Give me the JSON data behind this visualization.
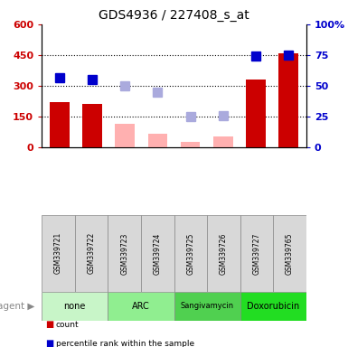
{
  "title": "GDS4936 / 227408_s_at",
  "samples": [
    "GSM339721",
    "GSM339722",
    "GSM339723",
    "GSM339724",
    "GSM339725",
    "GSM339726",
    "GSM339727",
    "GSM339765"
  ],
  "groups": [
    {
      "label": "none",
      "color": "#c8f5c8",
      "samples": [
        0,
        1
      ]
    },
    {
      "label": "ARC",
      "color": "#90ee90",
      "samples": [
        2,
        3
      ]
    },
    {
      "label": "Sangivamycin",
      "color": "#50d050",
      "samples": [
        4,
        5
      ]
    },
    {
      "label": "Doxorubicin",
      "color": "#22dd22",
      "samples": [
        6,
        7
      ]
    }
  ],
  "count_values": [
    220,
    210,
    null,
    null,
    null,
    null,
    330,
    460
  ],
  "count_color": "#cc0000",
  "value_absent": [
    null,
    null,
    115,
    68,
    28,
    52,
    null,
    null
  ],
  "value_absent_color": "#ffb0b0",
  "rank_present": [
    56.5,
    55.5,
    null,
    null,
    null,
    null,
    74,
    75
  ],
  "rank_present_color": "#0000cc",
  "rank_absent": [
    null,
    null,
    50,
    45,
    25,
    25.5,
    null,
    null
  ],
  "rank_absent_color": "#aaaadd",
  "ylim_left": [
    0,
    600
  ],
  "ylim_right": [
    0,
    100
  ],
  "yticks_left": [
    0,
    150,
    300,
    450,
    600
  ],
  "yticks_right": [
    0,
    25,
    50,
    75,
    100
  ],
  "hlines": [
    150,
    300,
    450
  ],
  "bar_width": 0.6,
  "marker_size": 7,
  "figsize": [
    3.85,
    3.84
  ],
  "dpi": 100
}
